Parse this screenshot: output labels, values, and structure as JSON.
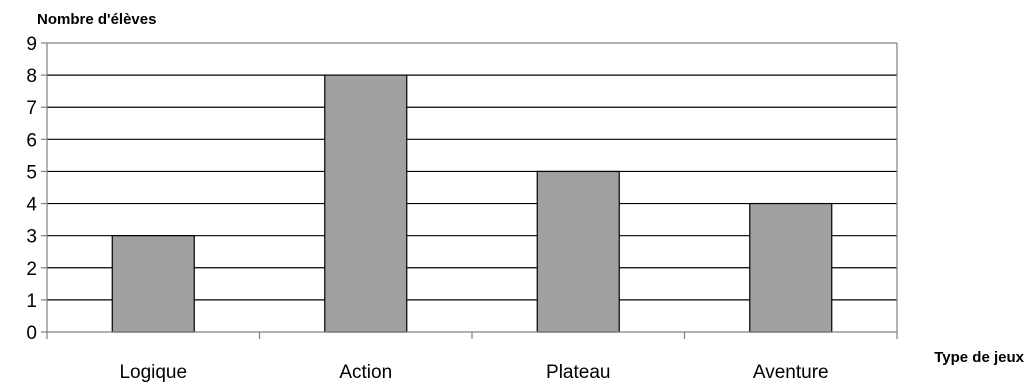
{
  "chart_data": {
    "type": "bar",
    "title": "",
    "ylabel": "Nombre d'élèves",
    "xlabel": "Type de jeux",
    "categories": [
      "Logique",
      "Action",
      "Plateau",
      "Aventure"
    ],
    "values": [
      3,
      8,
      5,
      4
    ],
    "ylim": [
      0,
      9
    ],
    "yticks": [
      "0",
      "1",
      "2",
      "3",
      "4",
      "5",
      "6",
      "7",
      "8",
      "9"
    ],
    "grid": true,
    "legend": "none",
    "colors": {
      "bar_fill": "#a0a0a0",
      "bar_stroke": "#000000",
      "grid": "#000000",
      "axis": "#808080"
    }
  }
}
